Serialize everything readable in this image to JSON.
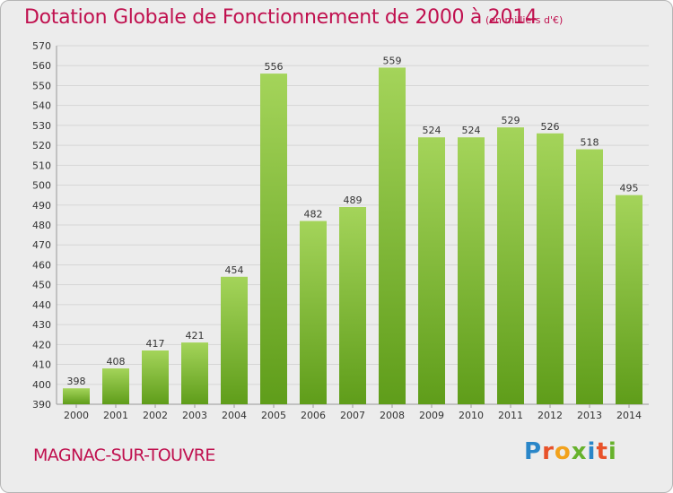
{
  "title": "Dotation Globale de Fonctionnement de 2000 à 2014",
  "unit_note": "(en milliers d'€)",
  "commune": "MAGNAC-SUR-TOUVRE",
  "logo": {
    "text": "Proxiti",
    "letters": [
      "P",
      "r",
      "o",
      "x",
      "i",
      "t",
      "i"
    ],
    "colors": [
      "#2a86c8",
      "#e8522a",
      "#f2a21c",
      "#67b22c",
      "#2a86c8",
      "#e8522a",
      "#67b22c"
    ]
  },
  "colors": {
    "bar_top": "#a4d45a",
    "bar_bottom": "#5f9d1a",
    "title": "#c0114f",
    "grid": "#d6d6d6"
  },
  "chart_data": {
    "type": "bar",
    "title": "Dotation Globale de Fonctionnement de 2000 à 2014",
    "subtitle": "(en milliers d'€)",
    "xlabel": "",
    "ylabel": "",
    "categories": [
      "2000",
      "2001",
      "2002",
      "2003",
      "2004",
      "2005",
      "2006",
      "2007",
      "2008",
      "2009",
      "2010",
      "2011",
      "2012",
      "2013",
      "2014"
    ],
    "values": [
      398,
      408,
      417,
      421,
      454,
      556,
      482,
      489,
      559,
      524,
      524,
      529,
      526,
      518,
      495
    ],
    "ylim": [
      390,
      570
    ],
    "yticks": [
      390,
      400,
      410,
      420,
      430,
      440,
      450,
      460,
      470,
      480,
      490,
      500,
      510,
      520,
      530,
      540,
      550,
      560,
      570
    ],
    "grid": true,
    "data_labels": true
  }
}
